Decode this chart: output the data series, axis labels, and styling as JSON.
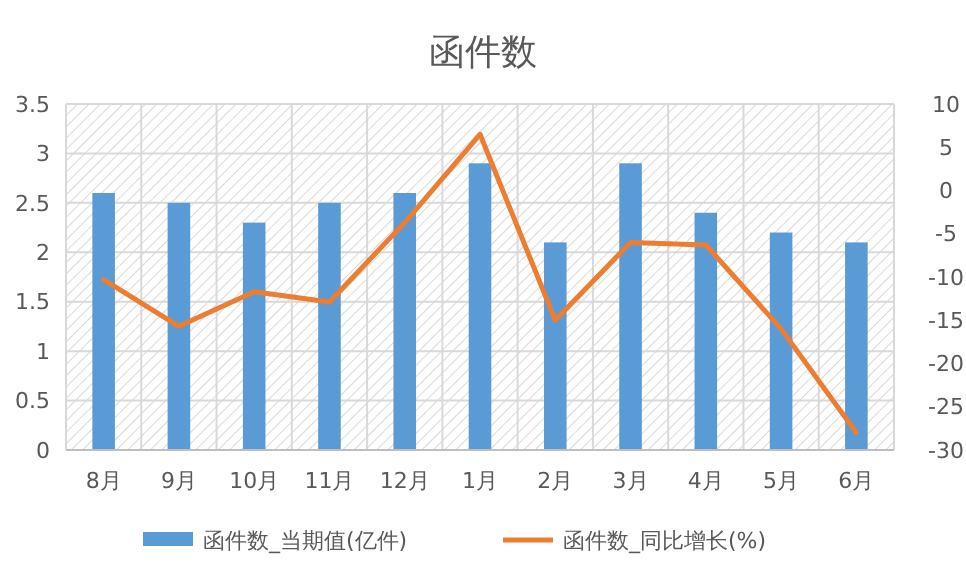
{
  "chart_data": {
    "type": "bar",
    "title": "函件数",
    "categories": [
      "8月",
      "9月",
      "10月",
      "11月",
      "12月",
      "1月",
      "2月",
      "3月",
      "4月",
      "5月",
      "6月"
    ],
    "series": [
      {
        "name": "函件数_当期值(亿件)",
        "color": "#5b9bd5",
        "values": [
          2.6,
          2.5,
          2.3,
          2.5,
          2.6,
          2.9,
          2.1,
          2.9,
          2.4,
          2.2,
          2.1
        ]
      },
      {
        "name": "函件数_同比增长(%)",
        "type": "line",
        "axis": "y2",
        "color": "#ed7d31",
        "values": [
          -10.3,
          -15.7,
          -11.7,
          -12.9,
          -3.7,
          6.5,
          -15,
          -6,
          -6.3,
          -16,
          -28
        ]
      }
    ],
    "ylim": [
      0,
      3.5
    ],
    "yticks": [
      0,
      0.5,
      1,
      1.5,
      2,
      2.5,
      3,
      3.5
    ],
    "y2lim": [
      -30,
      10
    ],
    "y2ticks": [
      -30,
      -25,
      -20,
      -15,
      -10,
      -5,
      0,
      5,
      10
    ],
    "grid": true,
    "legend": "bottom",
    "marker": "none",
    "line_style": "solid"
  }
}
